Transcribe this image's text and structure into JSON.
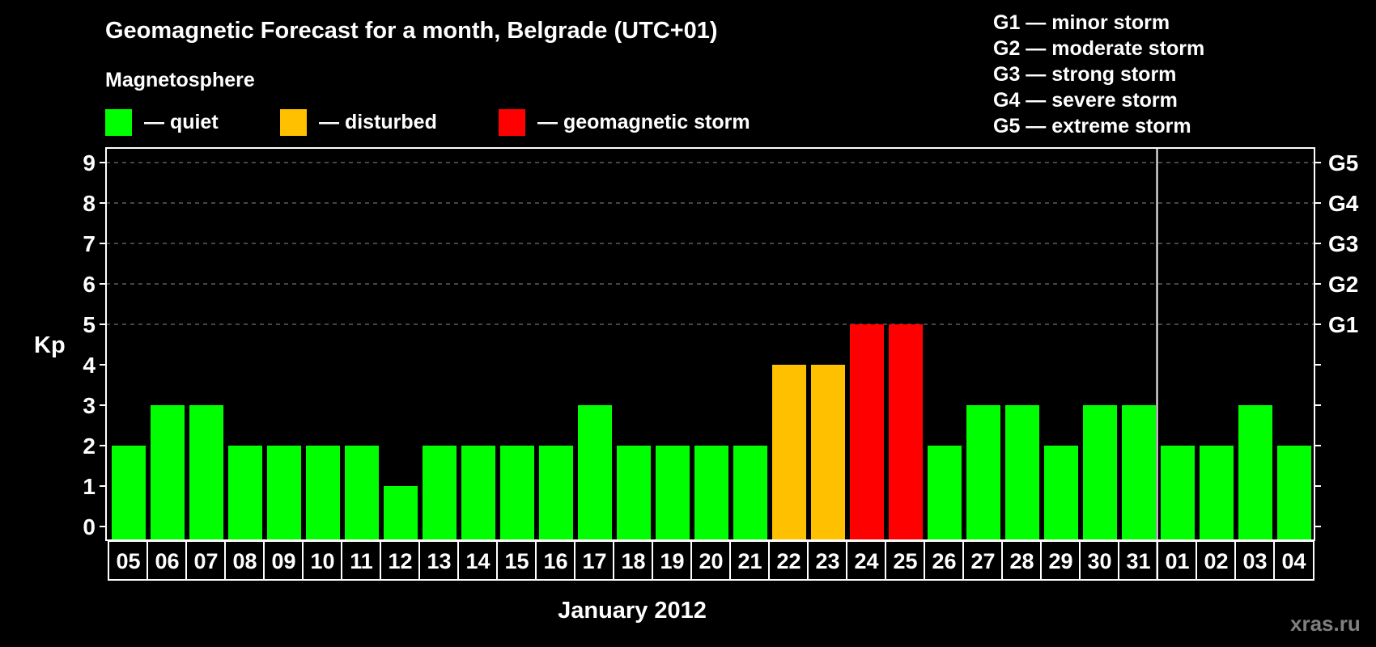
{
  "title": "Geomagnetic Forecast for a month, Belgrade (UTC+01)",
  "legend": {
    "heading": "Magnetosphere",
    "items": [
      {
        "label": "— quiet",
        "color": "#00FF00"
      },
      {
        "label": "— disturbed",
        "color": "#FFC000"
      },
      {
        "label": "— geomagnetic storm",
        "color": "#FF0000"
      }
    ]
  },
  "storm_scale": [
    "G1 — minor storm",
    "G2 — moderate storm",
    "G3 — strong storm",
    "G4 — severe storm",
    "G5 — extreme storm"
  ],
  "watermark": "xras.ru",
  "chart_data": {
    "type": "bar",
    "title": "Geomagnetic Forecast for a month, Belgrade (UTC+01)",
    "xlabel": "January 2012",
    "ylabel": "Kp",
    "ylim": [
      0,
      9
    ],
    "yticks": [
      0,
      1,
      2,
      3,
      4,
      5,
      6,
      7,
      8,
      9
    ],
    "right_axis_labels": [
      {
        "kp": 5,
        "label": "G1"
      },
      {
        "kp": 6,
        "label": "G2"
      },
      {
        "kp": 7,
        "label": "G3"
      },
      {
        "kp": 8,
        "label": "G4"
      },
      {
        "kp": 9,
        "label": "G5"
      }
    ],
    "grid": "dashed horizontal lines at Kp 5–9",
    "categories": [
      "05",
      "06",
      "07",
      "08",
      "09",
      "10",
      "11",
      "12",
      "13",
      "14",
      "15",
      "16",
      "17",
      "18",
      "19",
      "20",
      "21",
      "22",
      "23",
      "24",
      "25",
      "26",
      "27",
      "28",
      "29",
      "30",
      "31",
      "01",
      "02",
      "03",
      "04"
    ],
    "values": [
      2,
      3,
      3,
      2,
      2,
      2,
      2,
      1,
      2,
      2,
      2,
      2,
      3,
      2,
      2,
      2,
      2,
      4,
      4,
      5,
      5,
      2,
      3,
      3,
      2,
      3,
      3,
      2,
      2,
      3,
      2
    ],
    "levels": [
      "quiet",
      "quiet",
      "quiet",
      "quiet",
      "quiet",
      "quiet",
      "quiet",
      "quiet",
      "quiet",
      "quiet",
      "quiet",
      "quiet",
      "quiet",
      "quiet",
      "quiet",
      "quiet",
      "quiet",
      "disturbed",
      "disturbed",
      "storm",
      "storm",
      "quiet",
      "quiet",
      "quiet",
      "quiet",
      "quiet",
      "quiet",
      "quiet",
      "quiet",
      "quiet",
      "quiet"
    ],
    "level_colors": {
      "quiet": "#00FF00",
      "disturbed": "#FFC000",
      "storm": "#FF0000"
    },
    "month_divider_after": "31",
    "legend_position": "top-left"
  }
}
